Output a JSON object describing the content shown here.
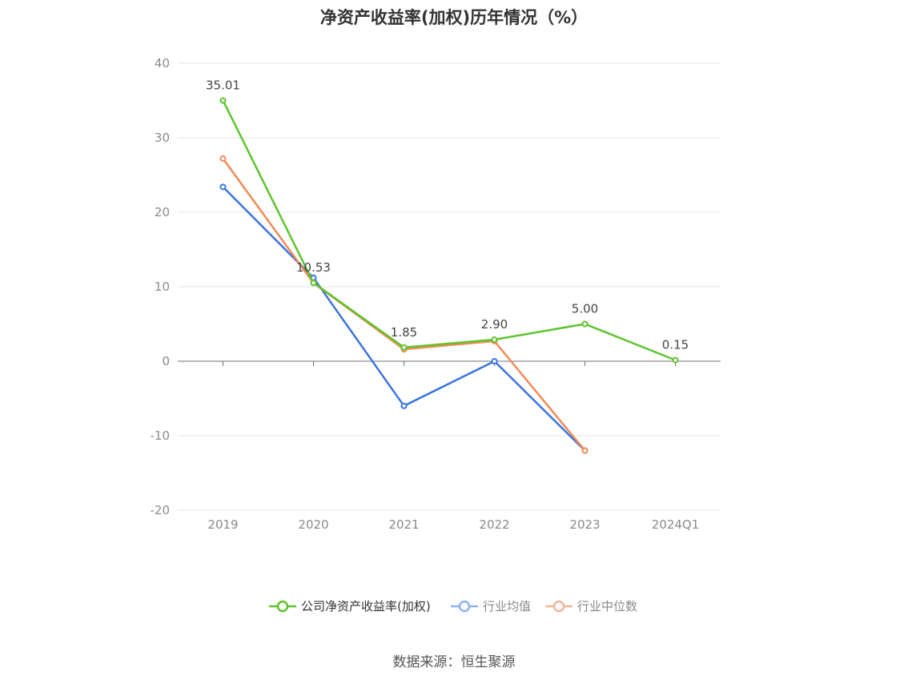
{
  "chart_data": {
    "type": "line",
    "title": "净资产收益率(加权)历年情况（%）",
    "categories": [
      "2019",
      "2020",
      "2021",
      "2022",
      "2023",
      "2024Q1"
    ],
    "ylim": [
      -20,
      40
    ],
    "yticks": [
      40,
      30,
      20,
      10,
      0,
      -10,
      -20
    ],
    "grid": true,
    "legend_position": "bottom-center",
    "series": [
      {
        "name": "公司净资产收益率(加权)",
        "color": "#5cc42c",
        "values": [
          35.01,
          10.53,
          1.85,
          2.9,
          5.0,
          0.15
        ],
        "labels": [
          "35.01",
          "10.53",
          "1.85",
          "2.90",
          "5.00",
          "0.15"
        ]
      },
      {
        "name": "行业均值",
        "color": "#3b74e0",
        "values": [
          23.4,
          11.2,
          -6.0,
          0.0,
          -12.0,
          null
        ]
      },
      {
        "name": "行业中位数",
        "color": "#f08a55",
        "values": [
          27.2,
          10.5,
          1.6,
          2.7,
          -12.0,
          null
        ]
      }
    ]
  },
  "legend_colors": [
    "#5cc42c",
    "#8fb2f0",
    "#f7b59b"
  ],
  "source_note": "数据来源：恒生聚源"
}
